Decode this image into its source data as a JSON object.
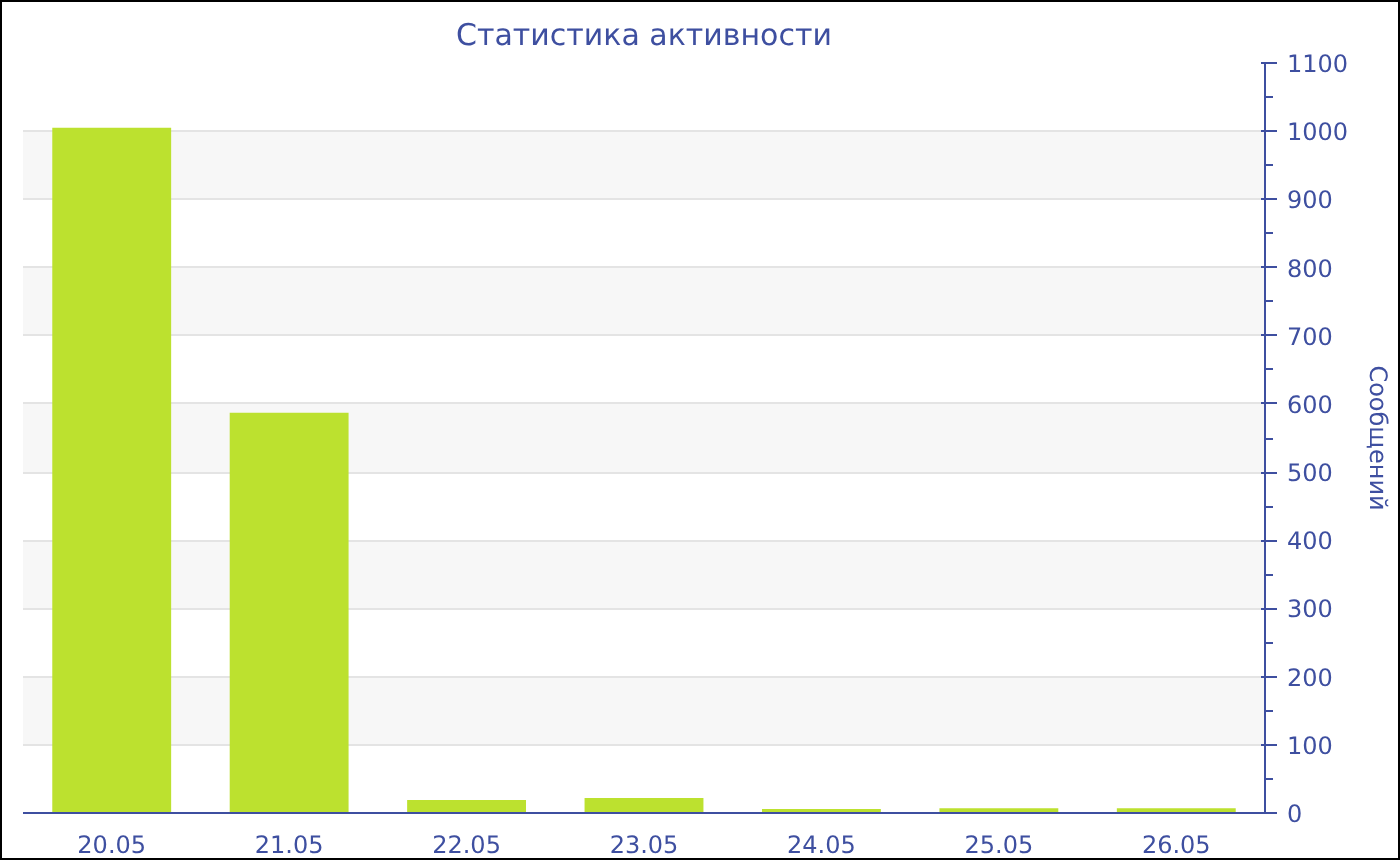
{
  "chart_data": {
    "type": "bar",
    "title": "Статистика активности",
    "ylabel": "Сообщений",
    "categories": [
      "20.05",
      "21.05",
      "22.05",
      "23.05",
      "24.05",
      "25.05",
      "26.05"
    ],
    "values": [
      1005,
      587,
      19,
      22,
      6,
      7,
      7
    ],
    "color": "#bce12f",
    "ylim": [
      0,
      1100
    ],
    "yticks": [
      0,
      100,
      200,
      300,
      400,
      500,
      600,
      700,
      800,
      900,
      1000,
      1100
    ],
    "grid": "y"
  }
}
